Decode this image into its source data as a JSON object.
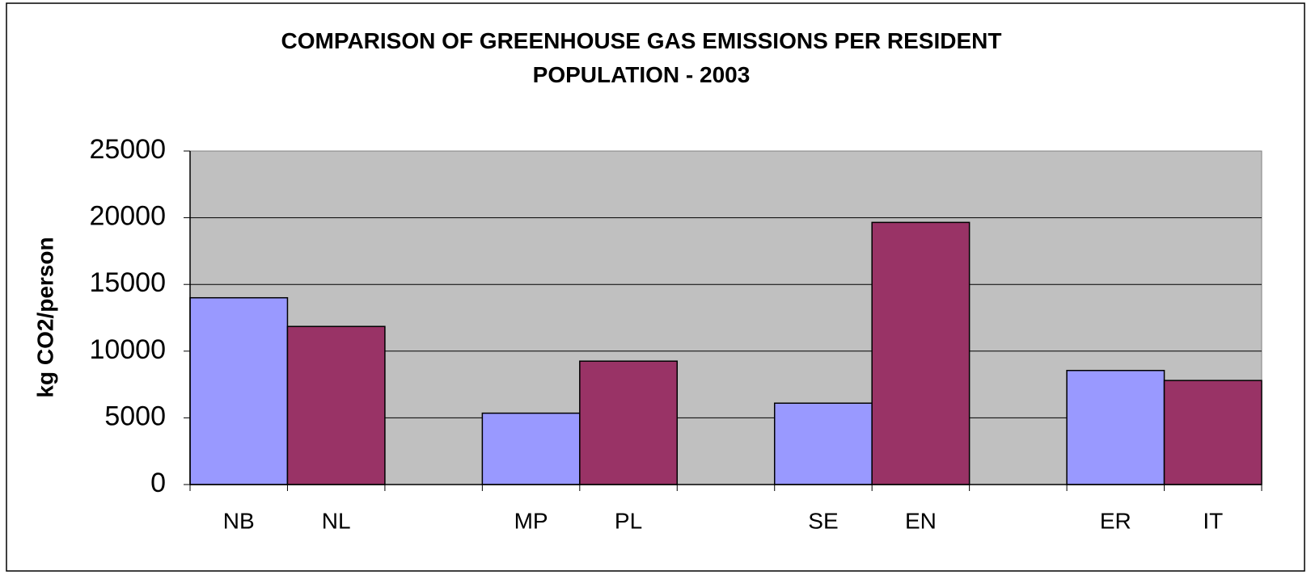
{
  "chart_data": {
    "type": "bar",
    "title": "COMPARISON OF GREENHOUSE GAS EMISSIONS PER RESIDENT POPULATION - 2003",
    "y_label": "kg CO2/person",
    "categories": [
      "NB",
      "NL",
      null,
      "MP",
      "PL",
      null,
      "SE",
      "EN",
      null,
      "ER",
      "IT"
    ],
    "values": [
      14000,
      11850,
      null,
      5350,
      9250,
      null,
      6100,
      19650,
      null,
      8550,
      7800
    ],
    "colors": [
      "#9999ff",
      "#993366",
      null,
      "#9999ff",
      "#993366",
      null,
      "#9999ff",
      "#993366",
      null,
      "#9999ff",
      "#993366"
    ],
    "ylim": [
      0,
      25000
    ],
    "yticks": [
      0,
      5000,
      10000,
      15000,
      20000,
      25000
    ],
    "grid": true
  }
}
